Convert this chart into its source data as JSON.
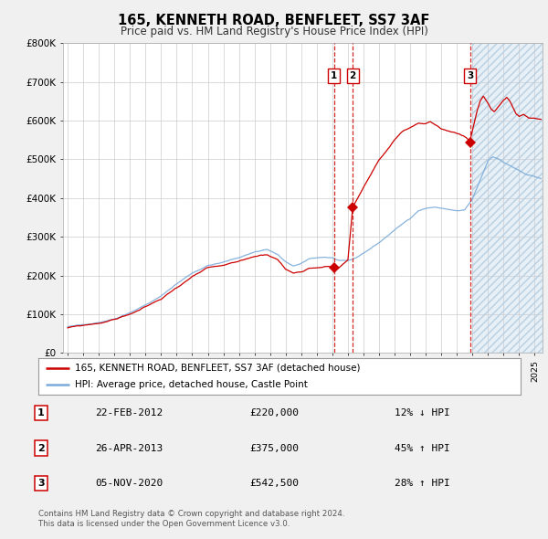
{
  "title": "165, KENNETH ROAD, BENFLEET, SS7 3AF",
  "subtitle": "Price paid vs. HM Land Registry's House Price Index (HPI)",
  "ylim": [
    0,
    800000
  ],
  "yticks": [
    0,
    100000,
    200000,
    300000,
    400000,
    500000,
    600000,
    700000,
    800000
  ],
  "ytick_labels": [
    "£0",
    "£100K",
    "£200K",
    "£300K",
    "£400K",
    "£500K",
    "£600K",
    "£700K",
    "£800K"
  ],
  "xlim_start": 1994.7,
  "xlim_end": 2025.5,
  "sale_color": "#cc0000",
  "hpi_color": "#7aabda",
  "vline_color": "#cc0000",
  "shade_color": "#deeaf5",
  "transactions": [
    {
      "label": "1",
      "date_year": 2012.12,
      "price": 220000
    },
    {
      "label": "2",
      "date_year": 2013.31,
      "price": 375000
    },
    {
      "label": "3",
      "date_year": 2020.84,
      "price": 542500
    }
  ],
  "legend_sale_label": "165, KENNETH ROAD, BENFLEET, SS7 3AF (detached house)",
  "legend_hpi_label": "HPI: Average price, detached house, Castle Point",
  "table_rows": [
    {
      "num": "1",
      "date": "22-FEB-2012",
      "price": "£220,000",
      "change": "12% ↓ HPI"
    },
    {
      "num": "2",
      "date": "26-APR-2013",
      "price": "£375,000",
      "change": "45% ↑ HPI"
    },
    {
      "num": "3",
      "date": "05-NOV-2020",
      "price": "£542,500",
      "change": "28% ↑ HPI"
    }
  ],
  "footnote": "Contains HM Land Registry data © Crown copyright and database right 2024.\nThis data is licensed under the Open Government Licence v3.0.",
  "bg_color": "#f0f0f0",
  "plot_bg": "#ffffff",
  "grid_color": "#cccccc",
  "shade_start": 2021.0
}
